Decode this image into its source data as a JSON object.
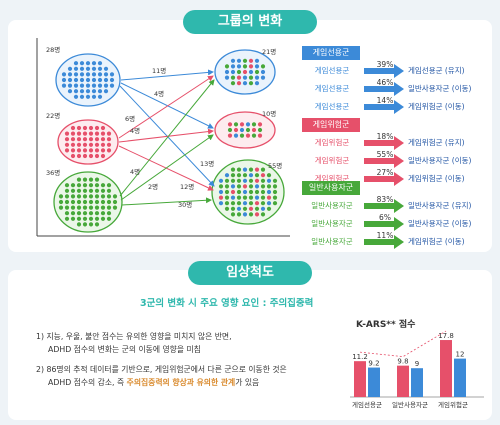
{
  "section1_title": "그룹의 변화",
  "section2_title": "임상척도",
  "colors": {
    "blue": "#3c8ad8",
    "red": "#e6506a",
    "green": "#47a83a",
    "teal": "#2fb8ad",
    "orange": "#f0a21c"
  },
  "diagram": {
    "left_counts": [
      "28명",
      "22명",
      "36명"
    ],
    "right_counts": [
      "21명",
      "10명",
      "55명"
    ],
    "flow_labels": [
      "11명",
      "4명",
      "13명",
      "6명",
      "4명",
      "12명",
      "4명",
      "2명",
      "30명"
    ]
  },
  "legend": [
    {
      "header": "게임선용군",
      "color": "#3c8ad8",
      "rows": [
        {
          "from": "게임선용군",
          "pct": "39%",
          "to": "게임선용군 (유지)"
        },
        {
          "from": "게임선용군",
          "pct": "46%",
          "to": "일반사용자군 (이동)"
        },
        {
          "from": "게임선용군",
          "pct": "14%",
          "to": "게임위험군 (이동)"
        }
      ]
    },
    {
      "header": "게임위험군",
      "color": "#e6506a",
      "rows": [
        {
          "from": "게임위험군",
          "pct": "18%",
          "to": "게임위험군 (유지)"
        },
        {
          "from": "게임위험군",
          "pct": "55%",
          "to": "일반사용자군 (이동)"
        },
        {
          "from": "게임위험군",
          "pct": "27%",
          "to": "게임위험군 (이동)"
        }
      ]
    },
    {
      "header": "일반사용자군",
      "color": "#47a83a",
      "rows": [
        {
          "from": "일반사용자군",
          "pct": "83%",
          "to": "일반사용자군 (유지)"
        },
        {
          "from": "일반사용자군",
          "pct": "6%",
          "to": "일반사용자군 (이동)"
        },
        {
          "from": "일반사용자군",
          "pct": "11%",
          "to": "게임위험군 (이동)"
        }
      ]
    }
  ],
  "clinical": {
    "headline": "3군의 변화 시 주요 영향 요인 : 주의집중력",
    "item1_line1": "1) 지능, 우울, 불안 점수는 유의한 영향을 미치지 않은 반면,",
    "item1_line2": "ADHD 점수의 변화는 군의 이동에 영향을 미침",
    "item2_line1": "2) 86명의 추적 데이터를 기반으로, 게임위험군에서 다른 군으로 이동한 것은",
    "item2_line2_pre": "ADHD 점수의 감소, 즉 ",
    "item2_line2_em": "주의집중력의 향상과 유의한 관계",
    "item2_line2_post": "가 있음"
  },
  "chart_data": {
    "type": "bar",
    "title": "K-ARS** 점수",
    "categories": [
      "게임선용군",
      "일반사용자군",
      "게임위험군"
    ],
    "series": [
      {
        "values": [
          11.2,
          9.8,
          17.8
        ]
      },
      {
        "values": [
          9.2,
          9,
          12
        ]
      }
    ]
  }
}
